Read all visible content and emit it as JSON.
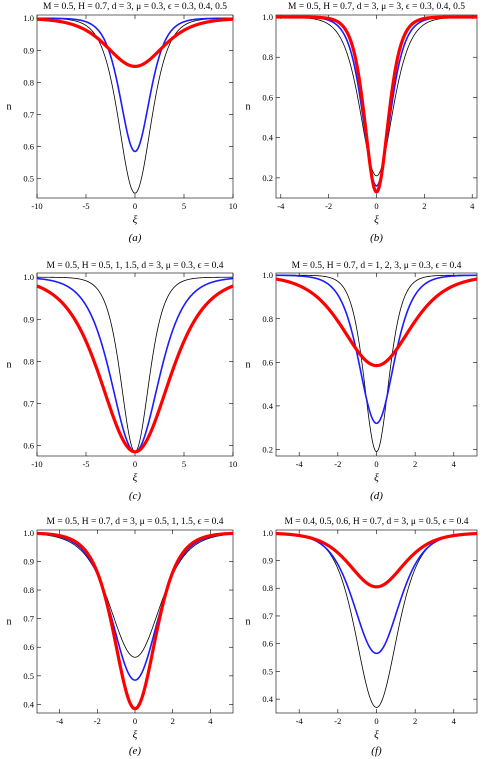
{
  "colors": {
    "black": "#000000",
    "blue": "#1c1cff",
    "red": "#ff0000"
  },
  "chart_data": [
    {
      "type": "line",
      "title": "M = 0.5, H = 0.7, d = 3, μ = 0.3, ϵ = 0.3, 0.4, 0.5",
      "xlabel": "ξ",
      "ylabel": "n",
      "caption": "(a)",
      "xlim": [
        -10,
        10
      ],
      "ylim": [
        0.44,
        1.01
      ],
      "xticks": [
        -10,
        -5,
        0,
        5,
        10
      ],
      "yticks": [
        0.5,
        0.6,
        0.7,
        0.8,
        0.9,
        1.0
      ],
      "ytick_labels": [
        "0.5",
        "0.6",
        "0.7",
        "0.8",
        "0.9",
        "1.0"
      ],
      "series": [
        {
          "min": 0.455,
          "width": 2.2,
          "color": "black",
          "stroke": 0.8
        },
        {
          "min": 0.585,
          "width": 2.0,
          "color": "blue",
          "stroke": 1.6
        },
        {
          "min": 0.85,
          "width": 3.8,
          "color": "red",
          "stroke": 3.2
        }
      ]
    },
    {
      "type": "line",
      "title": "M = 0.5, H = 0.7, d = 3, μ = 3, ϵ = 0.3, 0.4, 0.5",
      "xlabel": "ξ",
      "ylabel": "n",
      "caption": "(b)",
      "xlim": [
        -4.2,
        4.2
      ],
      "ylim": [
        0.1,
        1.01
      ],
      "xticks": [
        -4,
        -2,
        0,
        2,
        4
      ],
      "yticks": [
        0.2,
        0.4,
        0.6,
        0.8,
        1.0
      ],
      "ytick_labels": [
        "0.2",
        "0.4",
        "0.6",
        "0.8",
        "1.0"
      ],
      "series": [
        {
          "min": 0.21,
          "width": 0.9,
          "color": "black",
          "stroke": 0.8
        },
        {
          "min": 0.16,
          "width": 0.75,
          "color": "blue",
          "stroke": 1.6
        },
        {
          "min": 0.13,
          "width": 0.65,
          "color": "red",
          "stroke": 3.2
        }
      ]
    },
    {
      "type": "line",
      "title": "M = 0.5, H = 0.5, 1, 1.5, d = 3, μ = 0.3, ϵ = 0.4",
      "xlabel": "ξ",
      "ylabel": "n",
      "caption": "(c)",
      "xlim": [
        -10,
        10
      ],
      "ylim": [
        0.575,
        1.01
      ],
      "xticks": [
        -10,
        -5,
        0,
        5,
        10
      ],
      "yticks": [
        0.6,
        0.7,
        0.8,
        0.9,
        1.0
      ],
      "ytick_labels": [
        "0.6",
        "0.7",
        "0.8",
        "0.9",
        "1.0"
      ],
      "series": [
        {
          "min": 0.585,
          "width": 1.9,
          "color": "black",
          "stroke": 0.8
        },
        {
          "min": 0.585,
          "width": 3.2,
          "color": "blue",
          "stroke": 1.6
        },
        {
          "min": 0.585,
          "width": 4.6,
          "color": "red",
          "stroke": 3.2
        }
      ]
    },
    {
      "type": "line",
      "title": "M = 0.5, H = 0.7, d = 1, 2, 3, μ = 0.3, ϵ = 0.4",
      "xlabel": "ξ",
      "ylabel": "n",
      "caption": "(d)",
      "xlim": [
        -5.2,
        5.2
      ],
      "ylim": [
        0.17,
        1.01
      ],
      "xticks": [
        -4,
        -2,
        0,
        2,
        4
      ],
      "yticks": [
        0.2,
        0.4,
        0.6,
        0.8,
        1.0
      ],
      "ytick_labels": [
        "0.2",
        "0.4",
        "0.6",
        "0.8",
        "1.0"
      ],
      "series": [
        {
          "min": 0.19,
          "width": 0.85,
          "color": "black",
          "stroke": 0.8
        },
        {
          "min": 0.32,
          "width": 1.2,
          "color": "blue",
          "stroke": 1.6
        },
        {
          "min": 0.585,
          "width": 2.3,
          "color": "red",
          "stroke": 3.2
        }
      ]
    },
    {
      "type": "line",
      "title": "M = 0.5, H = 0.7, d = 3, μ = 0.5, 1, 1.5, ϵ = 0.4",
      "xlabel": "ξ",
      "ylabel": "n",
      "caption": "(e)",
      "xlim": [
        -5.2,
        5.2
      ],
      "ylim": [
        0.37,
        1.01
      ],
      "xticks": [
        -4,
        -2,
        0,
        2,
        4
      ],
      "yticks": [
        0.4,
        0.5,
        0.6,
        0.7,
        0.8,
        0.9,
        1.0
      ],
      "ytick_labels": [
        "0.4",
        "0.5",
        "0.6",
        "0.7",
        "0.8",
        "0.9",
        "1.0"
      ],
      "series": [
        {
          "min": 0.565,
          "width": 1.75,
          "color": "black",
          "stroke": 0.8
        },
        {
          "min": 0.485,
          "width": 1.6,
          "color": "blue",
          "stroke": 1.6
        },
        {
          "min": 0.385,
          "width": 1.45,
          "color": "red",
          "stroke": 3.2
        }
      ]
    },
    {
      "type": "line",
      "title": "M = 0.4, 0.5, 0.6,  H = 0.7, d = 3, μ = 0.5, ϵ = 0.4",
      "xlabel": "ξ",
      "ylabel": "n",
      "caption": "(f)",
      "xlim": [
        -5.2,
        5.2
      ],
      "ylim": [
        0.35,
        1.01
      ],
      "xticks": [
        -4,
        -2,
        0,
        2,
        4
      ],
      "yticks": [
        0.4,
        0.5,
        0.6,
        0.7,
        0.8,
        0.9,
        1.0
      ],
      "ytick_labels": [
        "0.4",
        "0.5",
        "0.6",
        "0.7",
        "0.8",
        "0.9",
        "1.0"
      ],
      "series": [
        {
          "min": 0.37,
          "width": 1.4,
          "color": "black",
          "stroke": 0.8
        },
        {
          "min": 0.565,
          "width": 1.55,
          "color": "blue",
          "stroke": 1.6
        },
        {
          "min": 0.805,
          "width": 1.85,
          "color": "red",
          "stroke": 3.2
        }
      ]
    }
  ]
}
